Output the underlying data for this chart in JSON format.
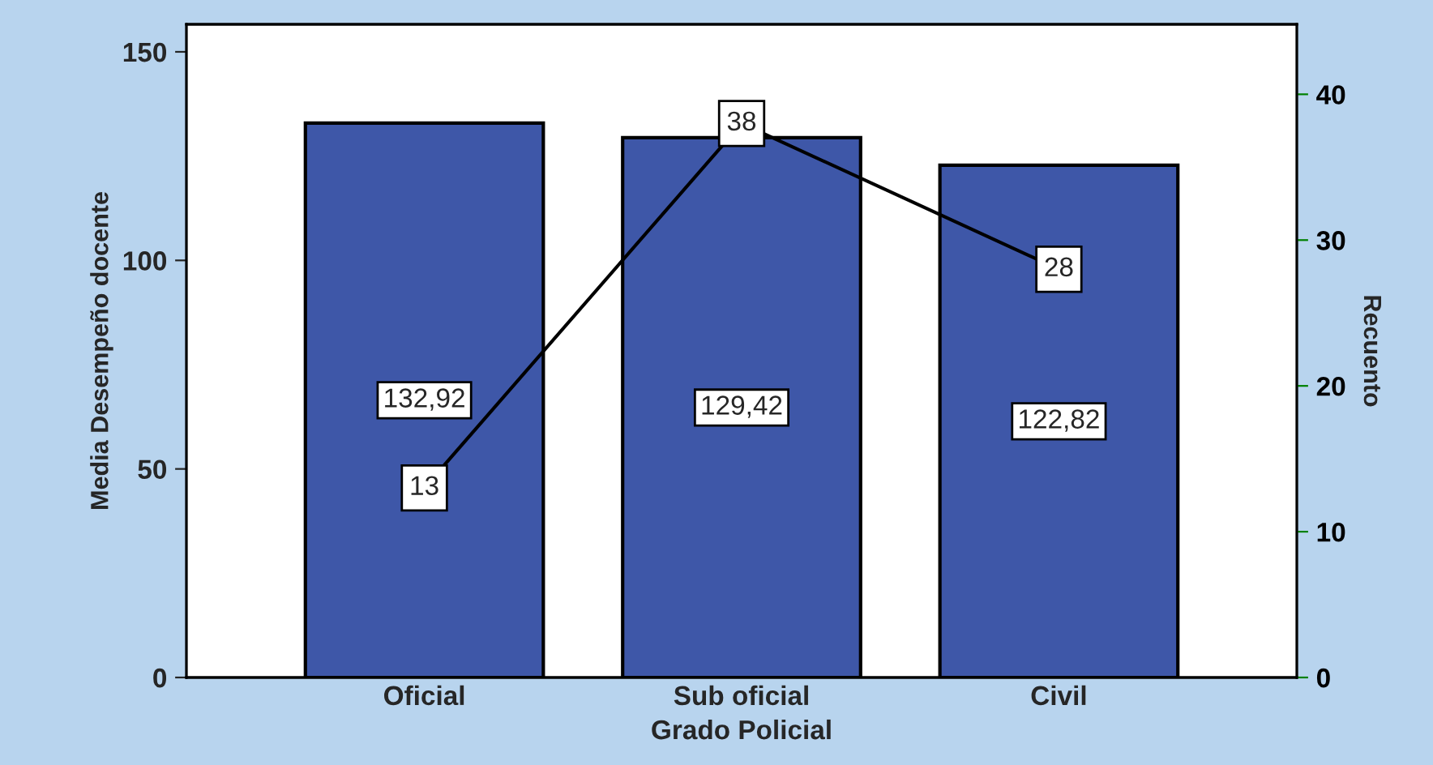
{
  "chart_data": {
    "type": "bar",
    "xlabel": "Grado Policial",
    "ylabel": "Media Desempeño docente",
    "y2label": "Recuento",
    "categories": [
      "Oficial",
      "Sub oficial",
      "Civil"
    ],
    "series": [
      {
        "color": "#3e57a8",
        "values": [
          132.92,
          129.42,
          122.82
        ],
        "value_labels": [
          "132,92",
          "129,42",
          "122,82"
        ]
      },
      {
        "type": "line",
        "axis": "y2",
        "color": "#000000",
        "values": [
          13,
          38,
          28
        ],
        "value_labels": [
          "13",
          "38",
          "28"
        ],
        "marker": "square"
      }
    ],
    "ylim": [
      0,
      156.6
    ],
    "yticks": [
      0,
      50,
      100,
      150
    ],
    "y2lim": [
      0,
      44.8
    ],
    "y2ticks": [
      0,
      10,
      20,
      30,
      40
    ],
    "grid": false
  }
}
